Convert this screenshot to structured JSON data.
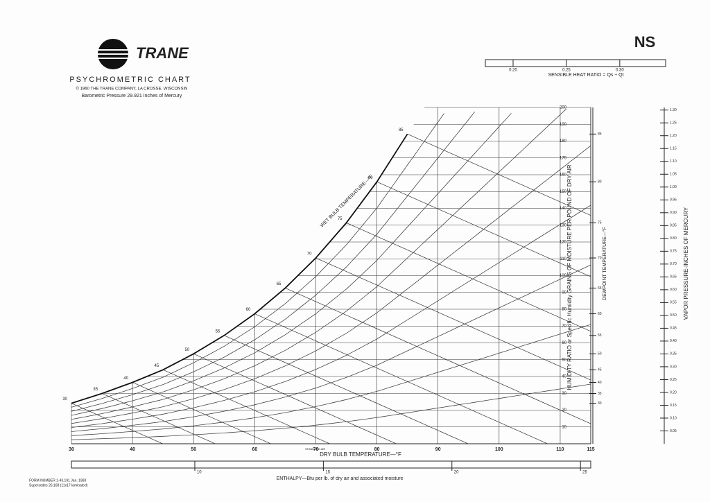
{
  "chart_data": {
    "type": "psychrometric",
    "brand": "TRANE",
    "title": "PSYCHROMETRIC CHART",
    "copyright": "© 1960 THE TRANE COMPANY, LA CROSSE, WISCONSIN",
    "subtitle": "Barometric Pressure 29.921 Inches of Mercury",
    "handwritten": "NS",
    "xlabel": "DRY BULB TEMPERATURE—°F",
    "xlim": [
      30,
      115
    ],
    "xticks": [
      30,
      40,
      50,
      60,
      70,
      80,
      90,
      100,
      110,
      115
    ],
    "ylabel": "HUMIDITY RATIO or Specific Humidity GRAINS OF MOISTURE PER POUND OF DRY AIR",
    "ylim": [
      0,
      200
    ],
    "yticks": [
      10,
      20,
      30,
      40,
      50,
      60,
      70,
      80,
      90,
      100,
      110,
      120,
      130,
      140,
      150,
      160,
      170,
      180,
      190,
      200
    ],
    "y2label": "VAPOR PRESSURE-INCHES OF MERCURY",
    "y2lim": [
      0,
      1.31
    ],
    "y2ticks": [
      0.05,
      {
        "value": 0.1,
        "label": "0.10"
      },
      0.15,
      {
        "value": 0.2,
        "label": "0.20"
      },
      0.25,
      {
        "value": 0.3,
        "label": "0.30"
      },
      0.35,
      {
        "value": 0.4,
        "label": "0.40"
      },
      0.45,
      {
        "value": 0.5,
        "label": "0.50"
      },
      0.55,
      {
        "value": 0.6,
        "label": "0.60"
      },
      0.65,
      {
        "value": 0.7,
        "label": "0.70"
      },
      0.75,
      {
        "value": 0.8,
        "label": "0.80"
      },
      0.85,
      {
        "value": 0.9,
        "label": "0.90"
      },
      0.95,
      {
        "value": 1.0,
        "label": "1.00"
      },
      1.05,
      {
        "value": 1.1,
        "label": "1.10"
      },
      1.15,
      {
        "value": 1.2,
        "label": "1.20"
      },
      1.25,
      {
        "value": 1.3,
        "label": "1.30"
      }
    ],
    "wet_bulb_label": "WET BULB TEMPERATURE—°F",
    "saturation": {
      "color": "#111111",
      "x": [
        30,
        35,
        40,
        45,
        50,
        55,
        60,
        65,
        70,
        75,
        80,
        85
      ],
      "values": [
        24.1,
        29.9,
        36.5,
        44.0,
        53.5,
        64.4,
        77.3,
        92.6,
        110.5,
        131.4,
        155.8,
        184.2
      ]
    },
    "rh_curves": [
      10,
      20,
      30,
      40,
      50,
      60,
      70,
      80,
      90
    ],
    "dewpoint_label": "DEWPOINT TEMPERATURE—°F",
    "dewpoint_ticks": [
      30,
      35,
      40,
      45,
      50,
      55,
      60,
      65,
      70,
      75,
      80,
      85
    ],
    "enthalpy_label": "ENTHALPY—Btu per lb. of dry air and associated moisture",
    "enthalpy_lim": [
      5.2,
      25.4
    ],
    "enthalpy_ticks": [
      10,
      15,
      20,
      25
    ],
    "shr_label": "SENSIBLE HEAT RATIO = Qs ÷ Qt",
    "shr_lim": [
      0.174,
      0.343
    ],
    "shr_ticks": [
      {
        "value": 0.2,
        "label": "0.20"
      },
      0.25,
      {
        "value": 0.3,
        "label": "0.30"
      }
    ],
    "standard_air": "STANDARD AIR",
    "form_number": "FORM NUMBER 1-43.191 Jan. 1983",
    "supersedes": "Supersedes 26.168 (11x17 laminated)",
    "grid": true
  }
}
